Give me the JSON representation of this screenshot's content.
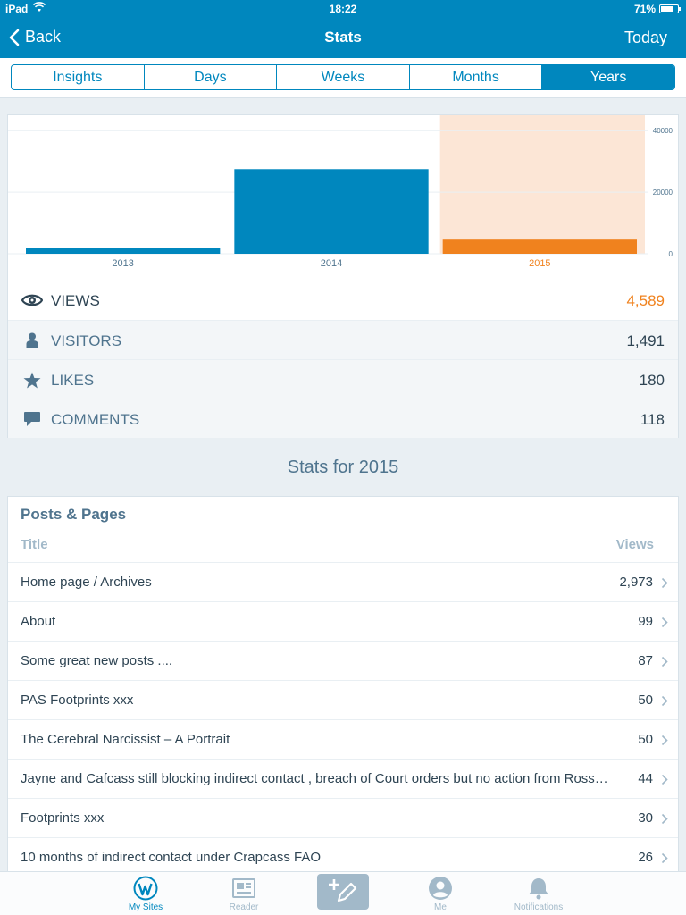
{
  "status_bar": {
    "device": "iPad",
    "time": "18:22",
    "battery": "71%"
  },
  "nav": {
    "back_label": "Back",
    "title": "Stats",
    "today_label": "Today"
  },
  "segments": [
    "Insights",
    "Days",
    "Weeks",
    "Months",
    "Years"
  ],
  "selected_segment": "Years",
  "colors": {
    "brand": "#0087be",
    "highlight": "#f0821e",
    "highlight_band": "#fce6d6"
  },
  "chart_data": {
    "type": "bar",
    "categories": [
      "2013",
      "2014",
      "2015"
    ],
    "values": [
      1900,
      27500,
      4589
    ],
    "highlighted_category": "2015",
    "y_ticks": [
      "40000",
      "20000",
      "0"
    ],
    "ylim": [
      0,
      45000
    ],
    "grid": true
  },
  "stats": [
    {
      "icon": "eye-icon",
      "label": "VIEWS",
      "value": "4,589",
      "highlight": true
    },
    {
      "icon": "person-icon",
      "label": "VISITORS",
      "value": "1,491",
      "highlight": false
    },
    {
      "icon": "star-icon",
      "label": "LIKES",
      "value": "180",
      "highlight": false
    },
    {
      "icon": "comment-icon",
      "label": "COMMENTS",
      "value": "118",
      "highlight": false
    }
  ],
  "section_title": "Stats for 2015",
  "posts_pages": {
    "title": "Posts & Pages",
    "col_title": "Title",
    "col_views": "Views",
    "rows": [
      {
        "title": "Home page / Archives",
        "views": "2,973"
      },
      {
        "title": "About",
        "views": "99"
      },
      {
        "title": "Some great new posts ....",
        "views": "87"
      },
      {
        "title": "PAS Footprints xxx",
        "views": "50"
      },
      {
        "title": "The Cerebral Narcissist – A Portrait",
        "views": "50"
      },
      {
        "title": "Jayne and Cafcass still blocking indirect contact , breach of Court orders but no action from Ross…",
        "views": "44"
      },
      {
        "title": "Footprints xxx",
        "views": "30"
      },
      {
        "title": "10 months of indirect contact under Crapcass FAO",
        "views": "26"
      }
    ]
  },
  "tabbar": {
    "items": [
      {
        "icon": "wordpress-icon",
        "label": "My Sites",
        "active": true
      },
      {
        "icon": "reader-icon",
        "label": "Reader",
        "active": false
      },
      {
        "icon": "new-post-icon",
        "label": "",
        "active": false
      },
      {
        "icon": "me-icon",
        "label": "Me",
        "active": false
      },
      {
        "icon": "notifications-icon",
        "label": "Notifications",
        "active": false
      }
    ]
  }
}
